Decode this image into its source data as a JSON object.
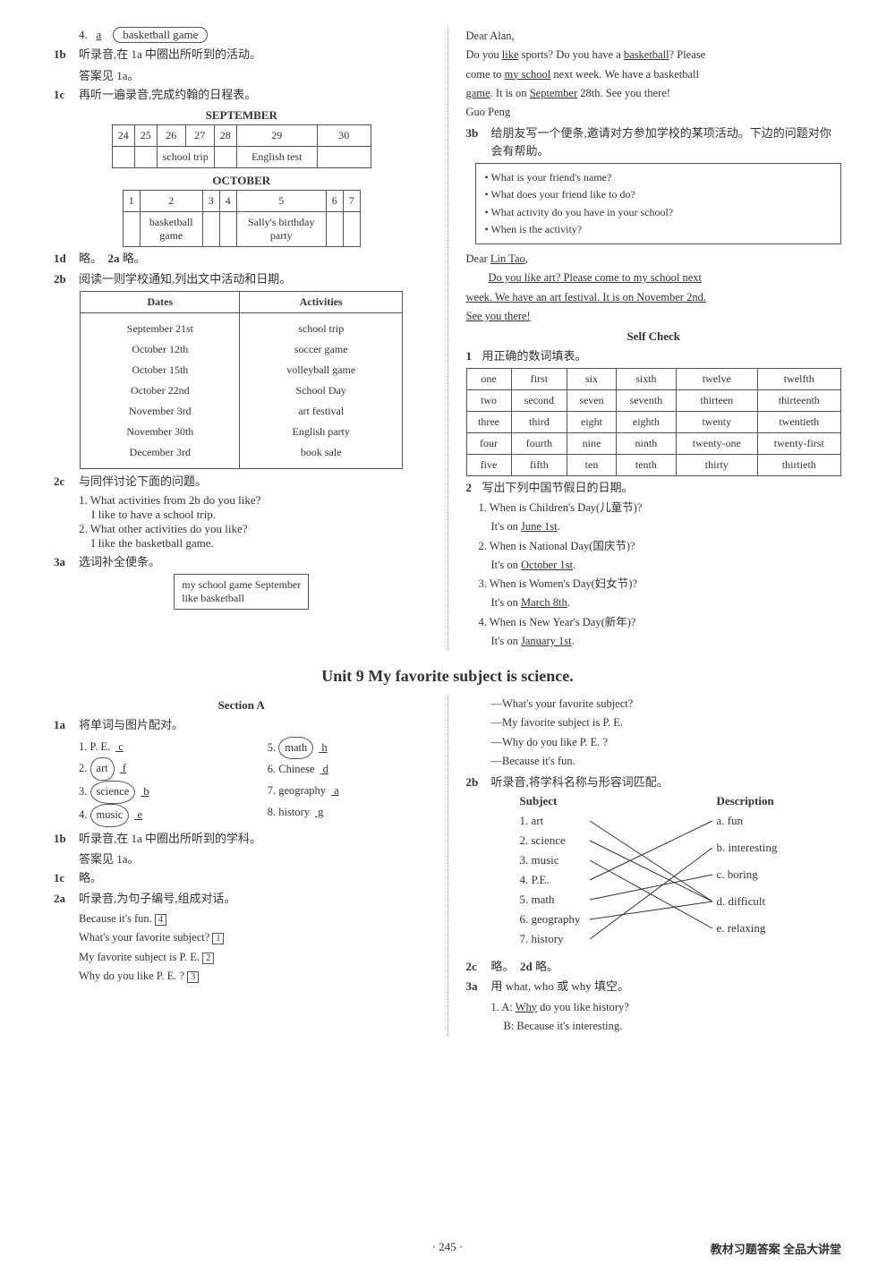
{
  "top": {
    "line4": {
      "num": "4.",
      "ans": "a",
      "circ": "basketball game"
    },
    "b1": {
      "label": "1b",
      "text": "听录音,在 1a 中圈出所听到的活动。",
      "sub": "答案见 1a。"
    },
    "c1": {
      "label": "1c",
      "text": "再听一遍录音,完成约翰的日程表。"
    },
    "sept_title": "SEPTEMBER",
    "sept": {
      "days": [
        "24",
        "25",
        "26",
        "27",
        "28",
        "29",
        "30"
      ],
      "events": [
        "",
        "",
        "school trip",
        "",
        "",
        "English test",
        ""
      ]
    },
    "oct_title": "OCTOBER",
    "oct": {
      "days": [
        "1",
        "2",
        "3",
        "4",
        "5",
        "6",
        "7"
      ],
      "events": [
        "",
        "basketball game",
        "",
        "",
        "Sally's birthday party",
        "",
        ""
      ]
    },
    "d1": {
      "label": "1d",
      "text": "略。"
    },
    "a2": {
      "label": "2a",
      "text": "略。"
    },
    "b2": {
      "label": "2b",
      "text": "阅读一则学校通知,列出文中活动和日期。"
    },
    "dates_hdr": [
      "Dates",
      "Activities"
    ],
    "dates_rows": [
      [
        "September 21st",
        "school trip"
      ],
      [
        "October 12th",
        "soccer game"
      ],
      [
        "October 15th",
        "volleyball game"
      ],
      [
        "October 22nd",
        "School Day"
      ],
      [
        "November 3rd",
        "art festival"
      ],
      [
        "November 30th",
        "English party"
      ],
      [
        "December 3rd",
        "book sale"
      ]
    ],
    "c2": {
      "label": "2c",
      "text": "与同伴讨论下面的问题。",
      "q1": "1. What activities from 2b do you like?",
      "a1": "I like to have a school trip.",
      "q2": "2. What other activities do you like?",
      "a2": "I like the basketball game."
    },
    "a3": {
      "label": "3a",
      "text": "选词补全便条。",
      "box1": "my school   game   September",
      "box2": "like   basketball"
    }
  },
  "right": {
    "letter1": {
      "greeting": "Dear Alan,",
      "l1a": "Do you ",
      "l1u1": "like",
      "l1b": " sports? Do you have a ",
      "l1u2": "basketball",
      "l1c": "? Please",
      "l2a": "come to ",
      "l2u1": "my school",
      "l2b": " next week. We have a basketball",
      "l3u1": "game",
      "l3a": ". It is on ",
      "l3u2": "September",
      "l3b": " 28th. See you there!",
      "sign": "Guo Peng"
    },
    "b3": {
      "label": "3b",
      "text": "给朋友写一个便条,邀请对方参加学校的某项活动。下边的问题对你会有帮助。"
    },
    "qbox": [
      "• What is your friend's name?",
      "• What does your friend like to do?",
      "• What activity do you have in your school?",
      "• When is the activity?"
    ],
    "letter2": {
      "greeting_a": "Dear ",
      "greeting_u": "Lin Tao",
      "greeting_b": ",",
      "l1": "Do you like art? Please come to my school next",
      "l2": "week. We have an art festival. It is on November 2nd.",
      "l3": "See you there!"
    },
    "sc_title": "Self Check",
    "sc1": {
      "label": "1",
      "text": "用正确的数词填表。"
    },
    "num_rows": [
      [
        "one",
        "first",
        "six",
        "sixth",
        "twelve",
        "twelfth"
      ],
      [
        "two",
        "second",
        "seven",
        "seventh",
        "thirteen",
        "thirteenth"
      ],
      [
        "three",
        "third",
        "eight",
        "eighth",
        "twenty",
        "twentieth"
      ],
      [
        "four",
        "fourth",
        "nine",
        "ninth",
        "twenty-one",
        "twenty-first"
      ],
      [
        "five",
        "fifth",
        "ten",
        "tenth",
        "thirty",
        "thirtieth"
      ]
    ],
    "sc2": {
      "label": "2",
      "text": "写出下列中国节假日的日期。"
    },
    "holidays": [
      {
        "q": "1. When is Children's Day(儿童节)?",
        "a_pre": "It's on ",
        "a_u": "June 1st",
        "a_post": "."
      },
      {
        "q": "2. When is National Day(国庆节)?",
        "a_pre": "It's on ",
        "a_u": "October 1st",
        "a_post": "."
      },
      {
        "q": "3. When is Women's Day(妇女节)?",
        "a_pre": "It's on ",
        "a_u": "March 8th",
        "a_post": "."
      },
      {
        "q": "4. When is New Year's Day(新年)?",
        "a_pre": "It's on ",
        "a_u": "January 1st",
        "a_post": "."
      }
    ]
  },
  "unit9": {
    "title": "Unit 9   My favorite subject is science.",
    "sectionA": "Section A",
    "a1": {
      "label": "1a",
      "text": "将单词与图片配对。"
    },
    "match_left": [
      {
        "n": "1.",
        "w": "P. E.",
        "a": "c",
        "circ": false
      },
      {
        "n": "2.",
        "w": "art",
        "a": "f",
        "circ": true
      },
      {
        "n": "3.",
        "w": "science",
        "a": "b",
        "circ": true
      },
      {
        "n": "4.",
        "w": "music",
        "a": "e",
        "circ": true
      }
    ],
    "match_right": [
      {
        "n": "5.",
        "w": "math",
        "a": "h",
        "circ": true
      },
      {
        "n": "6.",
        "w": "Chinese",
        "a": "d",
        "circ": false
      },
      {
        "n": "7.",
        "w": "geography",
        "a": "a",
        "circ": false
      },
      {
        "n": "8.",
        "w": "history",
        "a": "g",
        "circ": false
      }
    ],
    "b1": {
      "label": "1b",
      "text": "听录音,在 1a 中圈出所听到的学科。",
      "sub": "答案见 1a。"
    },
    "c1": {
      "label": "1c",
      "text": "略。"
    },
    "a2": {
      "label": "2a",
      "text": "听录音,为句子编号,组成对话。"
    },
    "dialog": [
      {
        "t": "Because it's fun.",
        "n": "4"
      },
      {
        "t": "What's your favorite subject?",
        "n": "1"
      },
      {
        "t": "My favorite subject is P. E.",
        "n": "2"
      },
      {
        "t": "Why do you like P. E. ?",
        "n": "3"
      }
    ],
    "dialog2": [
      "—What's your favorite subject?",
      "—My favorite subject is P. E.",
      "—Why do you like P. E. ?",
      "—Because it's fun."
    ],
    "b2": {
      "label": "2b",
      "text": "听录音,将学科名称与形容词匹配。"
    },
    "subj_hdr": "Subject",
    "desc_hdr": "Description",
    "subjects": [
      "1. art",
      "2. science",
      "3. music",
      "4. P.E.",
      "5. math",
      "6. geography",
      "7. history"
    ],
    "descs": [
      "a. fun",
      "b. interesting",
      "c. boring",
      "d. difficult",
      "e. relaxing"
    ],
    "c2": {
      "label": "2c",
      "text": "略。"
    },
    "d2": {
      "label": "2d",
      "text": "略。"
    },
    "a3": {
      "label": "3a",
      "text": "用 what, who 或 why 填空。",
      "q1a": "1. A: ",
      "q1u": "Why",
      "q1b": " do you like history?",
      "q1ans": "B: Because it's interesting."
    }
  },
  "footer": {
    "page": "· 245 ·",
    "right": "教材习题答案  全品大讲堂"
  }
}
